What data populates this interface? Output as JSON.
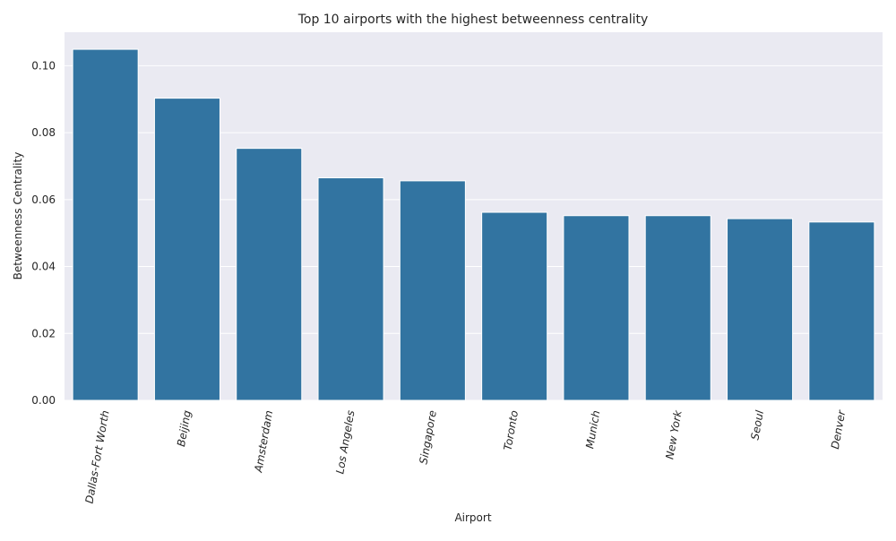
{
  "chart_data": {
    "type": "bar",
    "title": "Top 10 airports with the highest betweenness centrality",
    "xlabel": "Airport",
    "ylabel": "Betweenness Centrality",
    "categories": [
      "Dallas-Fort Worth",
      "Beijing",
      "Amsterdam",
      "Los Angeles",
      "Singapore",
      "Toronto",
      "Munich",
      "New York",
      "Seoul",
      "Denver"
    ],
    "values": [
      0.1049,
      0.0903,
      0.0753,
      0.0665,
      0.0656,
      0.0562,
      0.0552,
      0.0552,
      0.0543,
      0.0533
    ],
    "ylim": [
      0,
      0.11
    ],
    "yticks": [
      "0.00",
      "0.02",
      "0.04",
      "0.06",
      "0.08",
      "0.10"
    ],
    "grid": true,
    "x_tick_rotation": "rotated",
    "colors": {
      "bar": "#3274a1",
      "plot_background": "#eaeaf2",
      "grid": "#ffffff",
      "text": "#262626"
    }
  }
}
